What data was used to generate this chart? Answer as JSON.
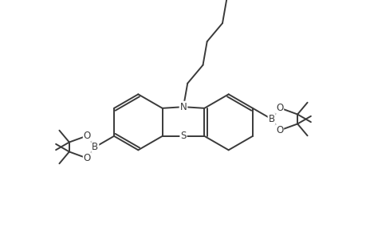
{
  "bg_color": "#ffffff",
  "line_color": "#3a3a3a",
  "line_width": 1.4,
  "text_color": "#3a3a3a",
  "font_size": 8.5,
  "figsize": [
    4.6,
    3.0
  ],
  "dpi": 100,
  "xlim": [
    -1.5,
    11.5
  ],
  "ylim": [
    -1.2,
    7.8
  ]
}
